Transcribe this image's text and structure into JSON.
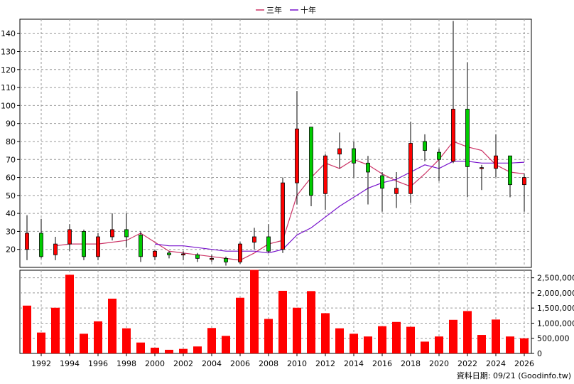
{
  "chart_data": {
    "type": "candlestick",
    "x": [
      1991,
      1992,
      1993,
      1994,
      1995,
      1996,
      1997,
      1998,
      1999,
      2000,
      2001,
      2002,
      2003,
      2004,
      2005,
      2006,
      2007,
      2008,
      2009,
      2010,
      2011,
      2012,
      2013,
      2014,
      2015,
      2016,
      2017,
      2018,
      2019,
      2020,
      2021,
      2022,
      2023,
      2024,
      2025,
      2026
    ],
    "x_ticks": [
      1992,
      1994,
      1996,
      1998,
      2000,
      2002,
      2004,
      2006,
      2008,
      2010,
      2012,
      2014,
      2016,
      2018,
      2020,
      2022,
      2024,
      2026
    ],
    "price": {
      "ylim": [
        10,
        148
      ],
      "y_ticks": [
        20,
        30,
        40,
        50,
        60,
        70,
        80,
        90,
        100,
        110,
        120,
        130,
        140
      ],
      "candles": [
        {
          "o": 20,
          "c": 29,
          "h": 39,
          "l": 14
        },
        {
          "o": 29,
          "c": 16,
          "h": 37,
          "l": 15
        },
        {
          "o": 17,
          "c": 23,
          "h": 27,
          "l": 14
        },
        {
          "o": 23,
          "c": 31,
          "h": 34,
          "l": 19
        },
        {
          "o": 30,
          "c": 16,
          "h": 31,
          "l": 14
        },
        {
          "o": 16,
          "c": 27,
          "h": 29,
          "l": 14
        },
        {
          "o": 27,
          "c": 31,
          "h": 40,
          "l": 25
        },
        {
          "o": 31,
          "c": 27,
          "h": 40,
          "l": 21
        },
        {
          "o": 28,
          "c": 16,
          "h": 30,
          "l": 13
        },
        {
          "o": 16,
          "c": 19,
          "h": 20,
          "l": 14
        },
        {
          "o": 18,
          "c": 17,
          "h": 19,
          "l": 15
        },
        {
          "o": 17,
          "c": 17.5,
          "h": 19,
          "l": 14
        },
        {
          "o": 17,
          "c": 15,
          "h": 18,
          "l": 13
        },
        {
          "o": 15,
          "c": 15,
          "h": 17,
          "l": 13
        },
        {
          "o": 15,
          "c": 13,
          "h": 16,
          "l": 11
        },
        {
          "o": 13,
          "c": 23,
          "h": 24,
          "l": 12
        },
        {
          "o": 24,
          "c": 27,
          "h": 32,
          "l": 20
        },
        {
          "o": 27,
          "c": 19,
          "h": 34,
          "l": 18
        },
        {
          "o": 20,
          "c": 57,
          "h": 60,
          "l": 18
        },
        {
          "o": 57,
          "c": 87,
          "h": 108,
          "l": 45
        },
        {
          "o": 88,
          "c": 50,
          "h": 88,
          "l": 44
        },
        {
          "o": 51,
          "c": 72,
          "h": 73,
          "l": 42
        },
        {
          "o": 73,
          "c": 76,
          "h": 85,
          "l": 65
        },
        {
          "o": 76,
          "c": 68,
          "h": 80,
          "l": 60
        },
        {
          "o": 68,
          "c": 63,
          "h": 72,
          "l": 45
        },
        {
          "o": 61,
          "c": 54,
          "h": 63,
          "l": 41
        },
        {
          "o": 51,
          "c": 54,
          "h": 63,
          "l": 43
        },
        {
          "o": 51,
          "c": 79,
          "h": 91,
          "l": 46
        },
        {
          "o": 80,
          "c": 75,
          "h": 84,
          "l": 69
        },
        {
          "o": 74,
          "c": 70,
          "h": 76,
          "l": 58
        },
        {
          "o": 69,
          "c": 98,
          "h": 147,
          "l": 68
        },
        {
          "o": 98,
          "c": 66,
          "h": 124,
          "l": 49
        },
        {
          "o": 65,
          "c": 65.5,
          "h": 67,
          "l": 53
        },
        {
          "o": 65,
          "c": 72,
          "h": 84,
          "l": 60
        },
        {
          "o": 72,
          "c": 56,
          "h": 72,
          "l": 49
        },
        {
          "o": 56,
          "c": 60,
          "h": 62,
          "l": 41
        }
      ],
      "series": [
        {
          "name": "三年",
          "color": "#cc3366",
          "values": [
            null,
            null,
            22,
            23,
            23,
            23,
            24,
            25,
            29,
            24,
            19,
            18,
            17,
            16,
            15,
            14,
            18,
            23,
            25,
            50,
            60,
            68,
            65,
            70,
            67,
            62,
            58,
            55,
            62,
            70,
            80,
            77,
            75,
            67,
            63,
            62
          ]
        },
        {
          "name": "十年",
          "color": "#7711cc",
          "values": [
            null,
            null,
            null,
            null,
            null,
            null,
            null,
            null,
            null,
            23,
            22,
            22,
            21,
            20,
            19,
            19,
            19,
            18,
            20,
            28,
            32,
            38,
            44,
            49,
            54,
            57,
            59,
            63,
            67,
            65,
            69,
            69,
            68,
            68,
            68,
            68.5
          ]
        }
      ]
    },
    "volume": {
      "ylim": [
        0,
        2750000
      ],
      "y_ticks": [
        0,
        500000,
        1000000,
        1500000,
        2000000,
        2500000
      ],
      "y_tick_labels": [
        "0",
        "500,000",
        "1,000,000",
        "1,500,000",
        "2,000,000",
        "2,500,000"
      ],
      "values": [
        1580000,
        690000,
        1510000,
        2600000,
        650000,
        1060000,
        1810000,
        830000,
        360000,
        190000,
        120000,
        150000,
        230000,
        840000,
        580000,
        1840000,
        2760000,
        1140000,
        2070000,
        1510000,
        2060000,
        1330000,
        830000,
        650000,
        560000,
        900000,
        1040000,
        880000,
        390000,
        560000,
        1110000,
        1400000,
        610000,
        1120000,
        560000,
        500000
      ]
    },
    "legend": {
      "position": "top-center"
    },
    "grid": true,
    "footer": "資料日期: 09/21 (Goodinfo.tw)"
  }
}
